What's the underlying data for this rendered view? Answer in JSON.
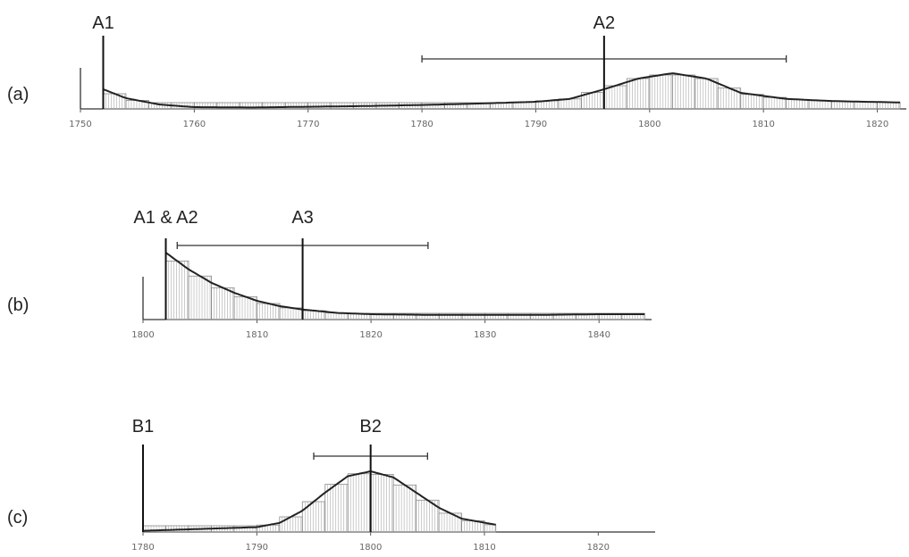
{
  "chart_data": [
    {
      "type": "area",
      "panel_label": "(a)",
      "xlim": [
        1750,
        1822
      ],
      "ticks": [
        1750,
        1760,
        1770,
        1780,
        1790,
        1800,
        1810,
        1820
      ],
      "markers": [
        {
          "label": "A1",
          "x": 1752
        },
        {
          "label": "A2",
          "x": 1796
        }
      ],
      "interval": [
        1780,
        1812
      ],
      "series": [
        {
          "x": [
            1752,
            1754,
            1757,
            1760,
            1765,
            1770,
            1775,
            1780,
            1785,
            1790,
            1793,
            1796,
            1799,
            1802,
            1805,
            1808,
            1812,
            1816,
            1822
          ],
          "y": [
            0.55,
            0.3,
            0.12,
            0.05,
            0.04,
            0.06,
            0.08,
            0.11,
            0.15,
            0.2,
            0.28,
            0.55,
            0.85,
            1.0,
            0.85,
            0.45,
            0.28,
            0.22,
            0.18
          ]
        }
      ]
    },
    {
      "type": "area",
      "panel_label": "(b)",
      "xlim": [
        1800,
        1845
      ],
      "ticks": [
        1800,
        1810,
        1820,
        1830,
        1840
      ],
      "markers": [
        {
          "label": "A1 & A2",
          "x": 1802
        },
        {
          "label": "A3",
          "x": 1814
        }
      ],
      "interval": [
        1803,
        1825
      ],
      "series": [
        {
          "x": [
            1802,
            1804,
            1806,
            1808,
            1810,
            1812,
            1814,
            1817,
            1820,
            1825,
            1830,
            1835,
            1840,
            1844
          ],
          "y": [
            1.0,
            0.75,
            0.55,
            0.4,
            0.28,
            0.2,
            0.15,
            0.1,
            0.08,
            0.07,
            0.07,
            0.07,
            0.08,
            0.08
          ]
        }
      ]
    },
    {
      "type": "area",
      "panel_label": "(c)",
      "xlim": [
        1780,
        1825
      ],
      "ticks": [
        1780,
        1790,
        1800,
        1810,
        1820
      ],
      "markers": [
        {
          "label": "B1",
          "x": 1780
        },
        {
          "label": "B2",
          "x": 1800
        }
      ],
      "interval": [
        1795,
        1805
      ],
      "series": [
        {
          "x": [
            1780,
            1785,
            1790,
            1792,
            1794,
            1796,
            1798,
            1800,
            1802,
            1804,
            1806,
            1808,
            1811
          ],
          "y": [
            0.02,
            0.05,
            0.08,
            0.15,
            0.35,
            0.65,
            0.92,
            1.0,
            0.9,
            0.65,
            0.4,
            0.22,
            0.12
          ]
        }
      ]
    }
  ]
}
